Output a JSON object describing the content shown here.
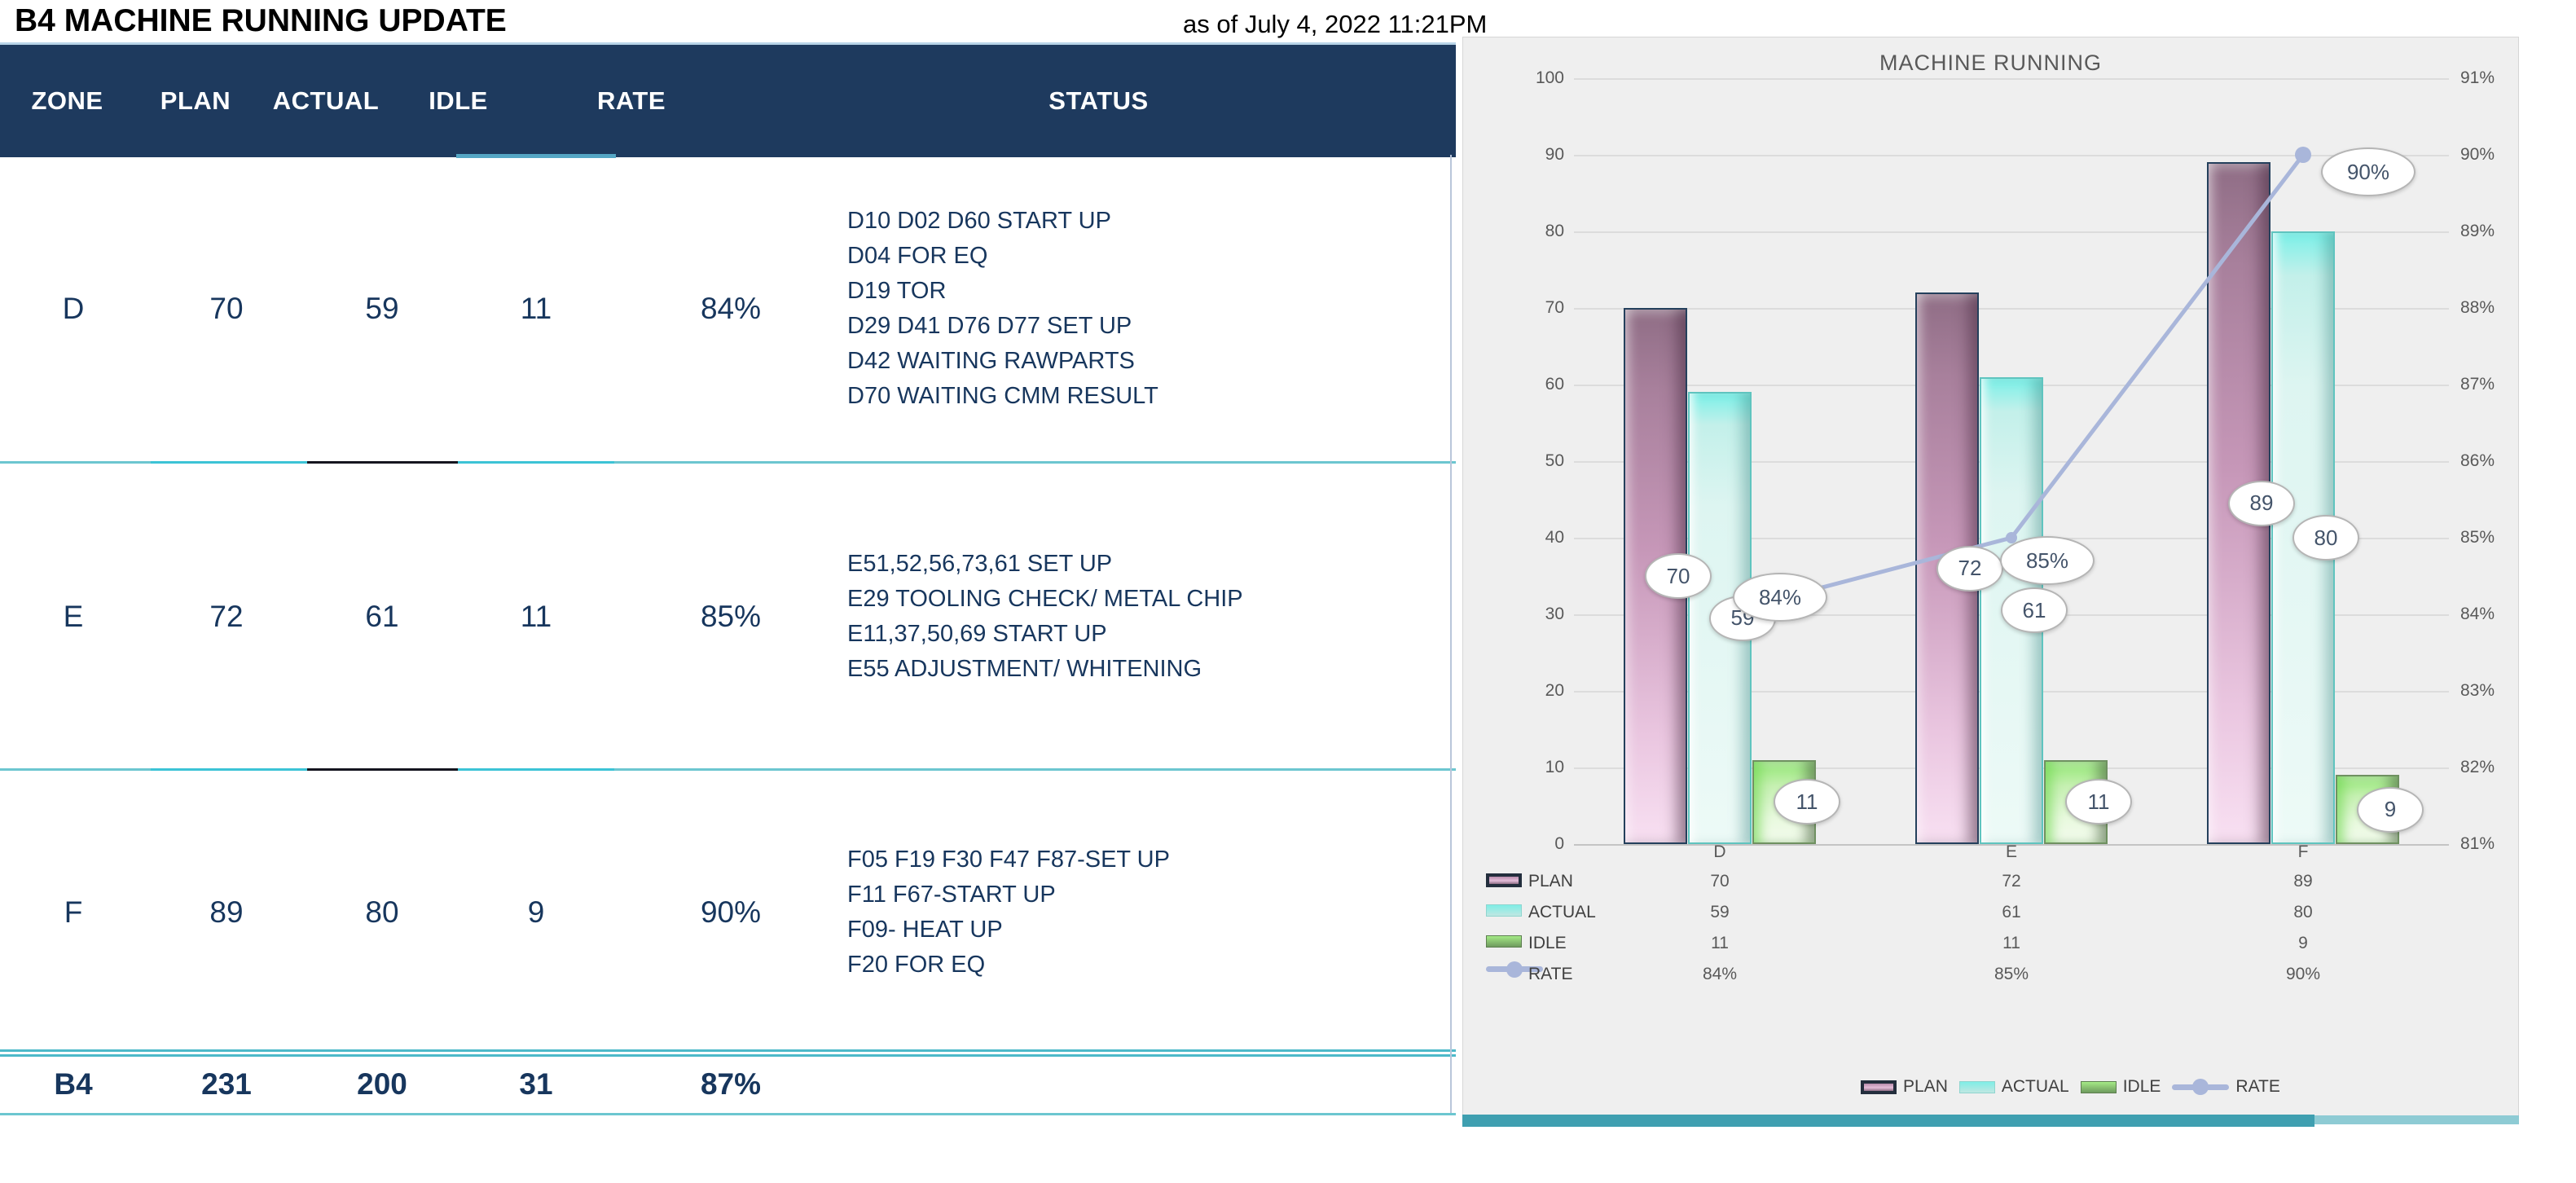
{
  "header": {
    "title": "B4 MACHINE RUNNING UPDATE",
    "timestamp": "as of July 4, 2022 11:21PM"
  },
  "table": {
    "columns": [
      "ZONE",
      "PLAN",
      "ACTUAL",
      "IDLE",
      "RATE",
      "STATUS"
    ],
    "rows": [
      {
        "zone": "D",
        "plan": "70",
        "actual": "59",
        "idle": "11",
        "rate": "84%",
        "status": [
          "D10 D02 D60 START UP",
          "D04 FOR EQ",
          "D19 TOR",
          "D29 D41 D76 D77 SET UP",
          "D42 WAITING RAWPARTS",
          "D70 WAITING CMM RESULT"
        ]
      },
      {
        "zone": "E",
        "plan": "72",
        "actual": "61",
        "idle": "11",
        "rate": "85%",
        "status": [
          "E51,52,56,73,61 SET UP",
          "E29 TOOLING CHECK/ METAL CHIP",
          "E11,37,50,69 START UP",
          "E55 ADJUSTMENT/ WHITENING"
        ]
      },
      {
        "zone": "F",
        "plan": "89",
        "actual": "80",
        "idle": "9",
        "rate": "90%",
        "status": [
          "F05 F19 F30 F47 F87-SET UP",
          "F11 F67-START UP",
          "F09- HEAT UP",
          "F20 FOR EQ"
        ]
      }
    ],
    "total": {
      "zone": "B4",
      "plan": "231",
      "actual": "200",
      "idle": "31",
      "rate": "87%"
    }
  },
  "chart_data": {
    "type": "bar",
    "subtype": "combo clustered-bar with line on secondary axis, data table shown",
    "title": "MACHINE RUNNING",
    "categories": [
      "D",
      "E",
      "F"
    ],
    "series": [
      {
        "name": "PLAN",
        "type": "bar",
        "axis": "left",
        "values": [
          70,
          72,
          89
        ],
        "display": [
          "70",
          "72",
          "89"
        ],
        "color": "#c597b8"
      },
      {
        "name": "ACTUAL",
        "type": "bar",
        "axis": "left",
        "values": [
          59,
          61,
          80
        ],
        "display": [
          "59",
          "61",
          "80"
        ],
        "color": "#bfeee9"
      },
      {
        "name": "IDLE",
        "type": "bar",
        "axis": "left",
        "values": [
          11,
          11,
          9
        ],
        "display": [
          "11",
          "11",
          "9"
        ],
        "color": "#a6e788"
      },
      {
        "name": "RATE",
        "type": "line",
        "axis": "right",
        "values": [
          84,
          85,
          90
        ],
        "display": [
          "84%",
          "85%",
          "90%"
        ],
        "color": "#a9b6da"
      }
    ],
    "left_axis": {
      "min": 0,
      "max": 100,
      "step": 10,
      "ticks_top_to_bottom": [
        "100",
        "90",
        "80",
        "70",
        "60",
        "50",
        "40",
        "30",
        "20",
        "10",
        "0"
      ]
    },
    "right_axis": {
      "min": 81,
      "max": 91,
      "step": 1,
      "ticks_top_to_bottom": [
        "91%",
        "90%",
        "89%",
        "88%",
        "87%",
        "86%",
        "85%",
        "84%",
        "83%",
        "82%",
        "81%"
      ]
    },
    "legend": [
      "PLAN",
      "ACTUAL",
      "IDLE",
      "RATE"
    ],
    "legend_position": "bottom",
    "grid": true,
    "data_table_shown": true
  }
}
